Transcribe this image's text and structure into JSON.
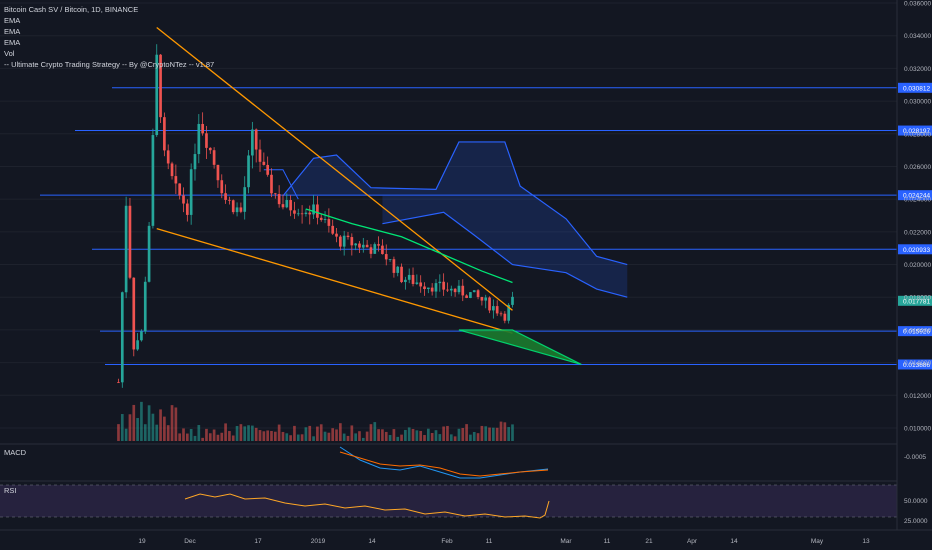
{
  "legend": {
    "title": "Bitcoin Cash SV / Bitcoin, 1D, BINANCE",
    "indicators": [
      "EMA",
      "EMA",
      "EMA",
      "Vol",
      "-- Ultimate Crypto Trading Strategy -- By @CryptoNTez -- v1.87"
    ]
  },
  "panes": {
    "macd_label": "MACD",
    "rsi_label": "RSI"
  },
  "colors": {
    "background": "#131722",
    "up": "#26a69a",
    "down": "#ef5350",
    "trendline": "#ff9800",
    "hline": "#2962ff",
    "ema": "#00e676",
    "cloud": "#2962ff",
    "rsi_line": "#ffa726",
    "rsi_band": "#7e57c2",
    "price_tag": "#26a69a"
  },
  "chart_data": {
    "type": "candlestick",
    "title": "Bitcoin Cash SV / Bitcoin, 1D, BINANCE",
    "x_axis": {
      "ticks": [
        "19",
        "Dec",
        "17",
        "2019",
        "14",
        "Feb",
        "11",
        "Mar",
        "11",
        "21",
        "Apr",
        "14",
        "May",
        "13"
      ],
      "range": [
        "2018-11-12",
        "2019-05-20"
      ]
    },
    "y_axis": {
      "scale": "linear",
      "range": [
        0.009,
        0.036
      ],
      "ticks": [
        "0.036000",
        "0.034000",
        "0.032000",
        "0.030000",
        "0.028000",
        "0.026000",
        "0.024000",
        "0.022000",
        "0.020000",
        "0.018000",
        "0.016000",
        "0.014000",
        "0.012000",
        "0.010000"
      ]
    },
    "horizontal_levels": [
      {
        "value": 0.030812,
        "label": "0.030812"
      },
      {
        "value": 0.028197,
        "label": "0.028197"
      },
      {
        "value": 0.024244,
        "label": "0.024244"
      },
      {
        "value": 0.020933,
        "label": "0.020933"
      },
      {
        "value": 0.015926,
        "label": "0.015926"
      },
      {
        "value": 0.013886,
        "label": "0.013886"
      }
    ],
    "last_price": {
      "value": 0.017781,
      "label": "0.017781"
    },
    "close_path": [
      {
        "date": "2018-11-15",
        "close": 0.0128
      },
      {
        "date": "2018-11-17",
        "close": 0.0238
      },
      {
        "date": "2018-11-19",
        "close": 0.015
      },
      {
        "date": "2018-11-21",
        "close": 0.0158
      },
      {
        "date": "2018-11-23",
        "close": 0.0225
      },
      {
        "date": "2018-11-25",
        "close": 0.0325
      },
      {
        "date": "2018-11-27",
        "close": 0.0265
      },
      {
        "date": "2018-11-30",
        "close": 0.0245
      },
      {
        "date": "2018-12-03",
        "close": 0.0235
      },
      {
        "date": "2018-12-06",
        "close": 0.029
      },
      {
        "date": "2018-12-09",
        "close": 0.027
      },
      {
        "date": "2018-12-13",
        "close": 0.024
      },
      {
        "date": "2018-12-17",
        "close": 0.0232
      },
      {
        "date": "2018-12-20",
        "close": 0.0278
      },
      {
        "date": "2018-12-24",
        "close": 0.025
      },
      {
        "date": "2018-12-28",
        "close": 0.0236
      },
      {
        "date": "2019-01-01",
        "close": 0.0235
      },
      {
        "date": "2019-01-06",
        "close": 0.0232
      },
      {
        "date": "2019-01-11",
        "close": 0.0215
      },
      {
        "date": "2019-01-17",
        "close": 0.0212
      },
      {
        "date": "2019-01-23",
        "close": 0.0208
      },
      {
        "date": "2019-01-28",
        "close": 0.0192
      },
      {
        "date": "2019-02-03",
        "close": 0.0188
      },
      {
        "date": "2019-02-09",
        "close": 0.0185
      },
      {
        "date": "2019-02-15",
        "close": 0.0182
      },
      {
        "date": "2019-02-21",
        "close": 0.0174
      },
      {
        "date": "2019-02-24",
        "close": 0.0169
      },
      {
        "date": "2019-02-26",
        "close": 0.0178
      }
    ],
    "trendlines": [
      {
        "name": "upper",
        "from": {
          "date": "2018-11-25",
          "value": 0.0345
        },
        "to": {
          "date": "2019-02-26",
          "value": 0.0172
        }
      },
      {
        "name": "lower",
        "from": {
          "date": "2018-11-25",
          "value": 0.0222
        },
        "to": {
          "date": "2019-02-26",
          "value": 0.0158
        }
      }
    ],
    "projection_triangle": [
      {
        "date": "2019-02-12",
        "value": 0.016
      },
      {
        "date": "2019-02-26",
        "value": 0.016
      },
      {
        "date": "2019-03-16",
        "value": 0.01389
      }
    ],
    "ema_line": [
      {
        "date": "2019-01-03",
        "value": 0.0234
      },
      {
        "date": "2019-01-15",
        "value": 0.0225
      },
      {
        "date": "2019-01-28",
        "value": 0.0217
      },
      {
        "date": "2019-02-08",
        "value": 0.0206
      },
      {
        "date": "2019-02-18",
        "value": 0.0196
      },
      {
        "date": "2019-02-26",
        "value": 0.0189
      }
    ],
    "cloud_upper": [
      {
        "date": "2018-12-28",
        "value": 0.0242
      },
      {
        "date": "2019-01-05",
        "value": 0.0265
      },
      {
        "date": "2019-01-11",
        "value": 0.0267
      },
      {
        "date": "2019-01-20",
        "value": 0.0247
      },
      {
        "date": "2019-02-06",
        "value": 0.0246
      },
      {
        "date": "2019-02-12",
        "value": 0.0275
      },
      {
        "date": "2019-02-24",
        "value": 0.0275
      },
      {
        "date": "2019-02-28",
        "value": 0.0248
      },
      {
        "date": "2019-03-12",
        "value": 0.0228
      },
      {
        "date": "2019-03-20",
        "value": 0.0205
      },
      {
        "date": "2019-03-28",
        "value": 0.02
      }
    ],
    "cloud_lower": [
      {
        "date": "2019-01-23",
        "value": 0.0225
      },
      {
        "date": "2019-02-08",
        "value": 0.0232
      },
      {
        "date": "2019-02-16",
        "value": 0.0218
      },
      {
        "date": "2019-02-26",
        "value": 0.02
      },
      {
        "date": "2019-03-12",
        "value": 0.0195
      },
      {
        "date": "2019-03-20",
        "value": 0.0185
      },
      {
        "date": "2019-03-28",
        "value": 0.018
      }
    ],
    "panes": {
      "macd": {
        "label": "MACD",
        "tick": "-0.0005"
      },
      "rsi": {
        "label": "RSI",
        "ticks": [
          "50.0000",
          "25.0000"
        ]
      }
    }
  }
}
